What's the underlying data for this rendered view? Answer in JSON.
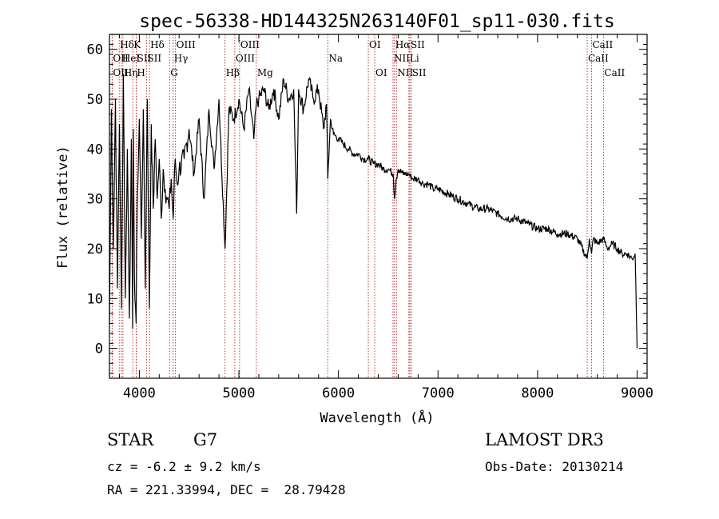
{
  "chart_data": {
    "type": "line",
    "title": "spec-56338-HD144325N263140F01_sp11-030.fits",
    "xlabel": "Wavelength (Å)",
    "ylabel": "Flux (relative)",
    "xlim": [
      3700,
      9100
    ],
    "ylim": [
      -6,
      63
    ],
    "x_ticks": [
      4000,
      5000,
      6000,
      7000,
      8000,
      9000
    ],
    "y_ticks": [
      0,
      10,
      20,
      30,
      40,
      50,
      60
    ],
    "series": [
      {
        "name": "spectrum",
        "x": [
          3700,
          3720,
          3740,
          3760,
          3780,
          3800,
          3820,
          3840,
          3860,
          3880,
          3900,
          3920,
          3933,
          3940,
          3950,
          3968,
          3980,
          4000,
          4020,
          4040,
          4060,
          4080,
          4101,
          4120,
          4140,
          4160,
          4180,
          4200,
          4220,
          4240,
          4260,
          4280,
          4300,
          4320,
          4340,
          4360,
          4380,
          4400,
          4450,
          4500,
          4550,
          4600,
          4650,
          4700,
          4750,
          4800,
          4861,
          4900,
          4950,
          5000,
          5050,
          5100,
          5150,
          5175,
          5200,
          5250,
          5300,
          5350,
          5400,
          5450,
          5500,
          5550,
          5580,
          5600,
          5650,
          5700,
          5750,
          5800,
          5850,
          5880,
          5893,
          5920,
          5950,
          6000,
          6050,
          6100,
          6150,
          6200,
          6250,
          6300,
          6350,
          6400,
          6450,
          6500,
          6550,
          6563,
          6580,
          6600,
          6650,
          6700,
          6750,
          6800,
          6850,
          6900,
          6950,
          7000,
          7100,
          7200,
          7300,
          7400,
          7500,
          7600,
          7700,
          7800,
          7900,
          8000,
          8100,
          8200,
          8300,
          8400,
          8498,
          8520,
          8542,
          8560,
          8600,
          8662,
          8700,
          8750,
          8800,
          8850,
          8900,
          8950,
          8980,
          9000
        ],
        "values": [
          5,
          48,
          20,
          50,
          12,
          45,
          8,
          55,
          10,
          40,
          6,
          42,
          4,
          44,
          15,
          5,
          30,
          46,
          22,
          48,
          12,
          50,
          8,
          45,
          28,
          42,
          30,
          38,
          26,
          36,
          32,
          30,
          28,
          34,
          26,
          38,
          33,
          36,
          38,
          44,
          35,
          46,
          30,
          48,
          36,
          50,
          20,
          48,
          46,
          50,
          44,
          52,
          42,
          49,
          50,
          52,
          48,
          52,
          46,
          54,
          50,
          52,
          27,
          52,
          48,
          54,
          50,
          52,
          44,
          49,
          34,
          46,
          43,
          42,
          41,
          40,
          39,
          39,
          38,
          38,
          37,
          37,
          36,
          36,
          35,
          30,
          34,
          36,
          35,
          35,
          34,
          34,
          33,
          33,
          32,
          32,
          31,
          30,
          29,
          28,
          28,
          27,
          26,
          26,
          25,
          24,
          24,
          23,
          23,
          22,
          18,
          22,
          19,
          22,
          21,
          22,
          20,
          21,
          20,
          19,
          19,
          18,
          19,
          0
        ]
      }
    ],
    "spectral_lines": [
      {
        "label": "Hδ",
        "wavelength": 3798,
        "row": 1
      },
      {
        "label": "OII",
        "wavelength": 3727,
        "row": 2
      },
      {
        "label": "OII",
        "wavelength": 3727,
        "row": 3
      },
      {
        "label": "HeI",
        "wavelength": 3819,
        "row": 2
      },
      {
        "label": "Hη",
        "wavelength": 3835,
        "row": 3
      },
      {
        "label": "K",
        "wavelength": 3934,
        "row": 1
      },
      {
        "label": "SII",
        "wavelength": 3970,
        "row": 2
      },
      {
        "label": "H",
        "wavelength": 3968,
        "row": 3
      },
      {
        "label": "Hδ",
        "wavelength": 4102,
        "row": 1
      },
      {
        "label": "SII",
        "wavelength": 4072,
        "row": 2
      },
      {
        "label": "OIII",
        "wavelength": 4363,
        "row": 1
      },
      {
        "label": "Hγ",
        "wavelength": 4340,
        "row": 2
      },
      {
        "label": "G",
        "wavelength": 4304,
        "row": 3
      },
      {
        "label": "OIII",
        "wavelength": 5007,
        "row": 1
      },
      {
        "label": "OIII",
        "wavelength": 4959,
        "row": 2
      },
      {
        "label": "Hβ",
        "wavelength": 4861,
        "row": 3
      },
      {
        "label": "Mg",
        "wavelength": 5175,
        "row": 3
      },
      {
        "label": "Na",
        "wavelength": 5893,
        "row": 2
      },
      {
        "label": "OI",
        "wavelength": 6300,
        "row": 1
      },
      {
        "label": "OI",
        "wavelength": 6364,
        "row": 3
      },
      {
        "label": "Hα",
        "wavelength": 6563,
        "row": 1
      },
      {
        "label": "NII",
        "wavelength": 6548,
        "row": 2
      },
      {
        "label": "NII",
        "wavelength": 6583,
        "row": 3
      },
      {
        "label": "SII",
        "wavelength": 6717,
        "row": 1
      },
      {
        "label": "Li",
        "wavelength": 6708,
        "row": 2
      },
      {
        "label": "SII",
        "wavelength": 6731,
        "row": 3
      },
      {
        "label": "CaII",
        "wavelength": 8542,
        "row": 1
      },
      {
        "label": "CaII",
        "wavelength": 8498,
        "row": 2
      },
      {
        "label": "CaII",
        "wavelength": 8662,
        "row": 3
      }
    ]
  },
  "info": {
    "class": "STAR",
    "subclass": "G7",
    "survey": "LAMOST DR3",
    "cz": "cz = -6.2 ± 9.2 km/s",
    "obs_date": "Obs-Date: 20130214",
    "coords": "RA = 221.33994, DEC =  28.79428"
  },
  "colors": {
    "line_marker": "#b22222",
    "spectrum": "#000000"
  }
}
